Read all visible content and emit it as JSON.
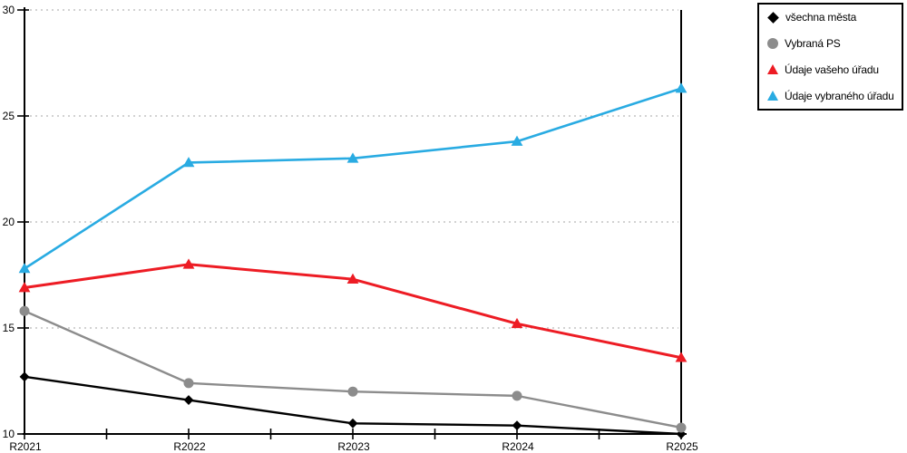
{
  "chart_data": {
    "type": "line",
    "title": "",
    "xlabel": "",
    "ylabel": "",
    "x_categories": [
      "R2021",
      "R2022",
      "R2023",
      "R2024",
      "R2025"
    ],
    "ylim": [
      10,
      30
    ],
    "yticks": [
      10,
      15,
      20,
      25,
      30
    ],
    "grid": "horizontal-dotted",
    "legend_position": "top-right",
    "series": [
      {
        "name": "všechna města",
        "marker": "diamond",
        "color": "#000000",
        "values": [
          12.7,
          11.6,
          10.5,
          10.4,
          10.0
        ]
      },
      {
        "name": "Vybraná PS",
        "marker": "circle",
        "color": "#8C8C8C",
        "values": [
          15.8,
          12.4,
          12.0,
          11.8,
          10.3
        ]
      },
      {
        "name": "Údaje vašeho úřadu",
        "marker": "triangle",
        "color": "#ED1C24",
        "values": [
          16.9,
          18.0,
          17.3,
          15.2,
          13.6
        ]
      },
      {
        "name": "Údaje vybraného úřadu",
        "marker": "triangle",
        "color": "#29ABE2",
        "values": [
          17.8,
          22.8,
          23.0,
          23.8,
          26.3
        ]
      }
    ],
    "colors": {
      "axis": "#000000",
      "gridline": "#c4c4c4",
      "background": "#ffffff"
    }
  }
}
